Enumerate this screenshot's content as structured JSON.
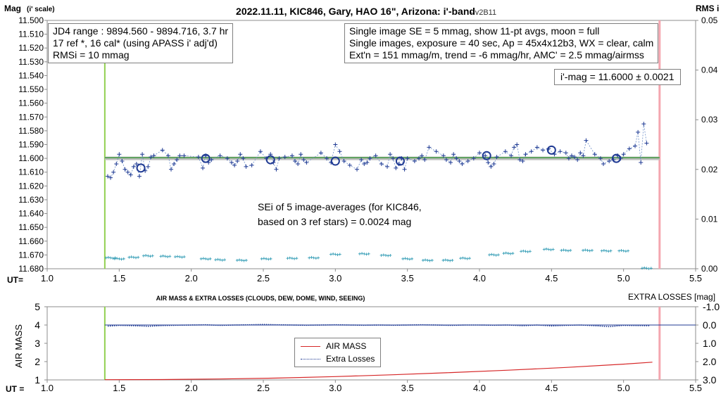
{
  "chart_data": [
    {
      "type": "scatter",
      "title": "2022.11.11, KIC846, Gary, HAO 16\", Arizona: i'-band",
      "version": "- v2B11",
      "ylabel_main": "Mag",
      "ylabel_sub": "(i' scale)",
      "y2label": "RMS i",
      "xlabel": "UT=",
      "xlim": [
        1.0,
        5.5
      ],
      "ylim": [
        11.68,
        11.5
      ],
      "y2lim": [
        0.0,
        0.05
      ],
      "xticks": [
        "1.0",
        "1.5",
        "2.0",
        "2.5",
        "3.0",
        "3.5",
        "4.0",
        "4.5",
        "5.0",
        "5.5"
      ],
      "yticks": [
        "11.500",
        "11.510",
        "11.520",
        "11.530",
        "11.540",
        "11.550",
        "11.560",
        "11.570",
        "11.580",
        "11.590",
        "11.600",
        "11.610",
        "11.620",
        "11.630",
        "11.640",
        "11.650",
        "11.660",
        "11.670",
        "11.680"
      ],
      "y2ticks": [
        "0.05",
        "0.04",
        "0.03",
        "0.02",
        "0.01",
        "0.00"
      ],
      "vertical_lines": {
        "start_ut": 1.4,
        "end_ut": 5.25
      },
      "reference_mag": 11.6,
      "annotations": {
        "left_box": [
          "JD4 range : 9894.560 - 9894.716, 3.7  hr",
          "17 ref *, 16 cal* (using APASS i' adj'd)",
          "RMSi = 10 mmag"
        ],
        "right_box": [
          "Single image SE = 5 mmag, show 11-pt avgs, moon = full",
          "Single images, exposure = 40 sec, Ap = 45x4x12b3, WX = clear, calm",
          "Ext'n = 151 mmag/m, trend = -6 mmag/hr, AMC' = 2.5 mmag/airmss"
        ],
        "mag_box": "i'-mag = 11.6000 ± 0.0021",
        "sei_box": [
          "SEi of 5 image-averages (for KIC846,",
          "based on 3 ref stars) = 0.0024 mag"
        ]
      },
      "series": [
        {
          "kind": "single-images",
          "color": "#1f3a93",
          "x": [
            1.42,
            1.44,
            1.46,
            1.48,
            1.5,
            1.52,
            1.54,
            1.56,
            1.58,
            1.6,
            1.62,
            1.64,
            1.66,
            1.68,
            1.7,
            1.72,
            1.74,
            1.8,
            1.84,
            1.86,
            1.88,
            1.9,
            1.92,
            1.95,
            2.05,
            2.08,
            2.1,
            2.12,
            2.14,
            2.2,
            2.25,
            2.28,
            2.3,
            2.32,
            2.34,
            2.36,
            2.38,
            2.42,
            2.48,
            2.52,
            2.55,
            2.57,
            2.59,
            2.61,
            2.65,
            2.7,
            2.72,
            2.74,
            2.76,
            2.78,
            2.8,
            2.9,
            2.94,
            2.97,
            3.0,
            3.03,
            3.06,
            3.1,
            3.15,
            3.18,
            3.2,
            3.22,
            3.24,
            3.28,
            3.32,
            3.36,
            3.38,
            3.4,
            3.42,
            3.44,
            3.46,
            3.48,
            3.5,
            3.55,
            3.58,
            3.6,
            3.62,
            3.65,
            3.7,
            3.75,
            3.77,
            3.8,
            3.82,
            3.84,
            3.86,
            3.88,
            3.92,
            3.96,
            4.0,
            4.04,
            4.06,
            4.08,
            4.1,
            4.12,
            4.18,
            4.22,
            4.24,
            4.26,
            4.28,
            4.3,
            4.32,
            4.36,
            4.4,
            4.44,
            4.48,
            4.52,
            4.56,
            4.6,
            4.62,
            4.64,
            4.66,
            4.68,
            4.7,
            4.72,
            4.74,
            4.8,
            4.84,
            4.86,
            4.9,
            4.93,
            4.96,
            4.98,
            5.0,
            5.04,
            5.08,
            5.1,
            5.12,
            5.14,
            5.16
          ],
          "y": [
            11.613,
            11.614,
            11.61,
            11.604,
            11.597,
            11.602,
            11.608,
            11.61,
            11.612,
            11.606,
            11.604,
            11.613,
            11.597,
            11.609,
            11.606,
            11.599,
            11.598,
            11.594,
            11.598,
            11.608,
            11.604,
            11.601,
            11.598,
            11.598,
            11.599,
            11.607,
            11.598,
            11.603,
            11.601,
            11.598,
            11.6,
            11.603,
            11.605,
            11.602,
            11.597,
            11.6,
            11.606,
            11.605,
            11.595,
            11.6,
            11.597,
            11.603,
            11.608,
            11.6,
            11.599,
            11.598,
            11.602,
            11.604,
            11.597,
            11.601,
            11.603,
            11.596,
            11.6,
            11.603,
            11.59,
            11.595,
            11.602,
            11.605,
            11.608,
            11.601,
            11.604,
            11.603,
            11.6,
            11.598,
            11.604,
            11.606,
            11.597,
            11.6,
            11.607,
            11.604,
            11.6,
            11.608,
            11.6,
            11.602,
            11.6,
            11.598,
            11.601,
            11.592,
            11.595,
            11.598,
            11.601,
            11.603,
            11.597,
            11.6,
            11.602,
            11.604,
            11.602,
            11.6,
            11.596,
            11.598,
            11.603,
            11.606,
            11.604,
            11.599,
            11.595,
            11.598,
            11.592,
            11.59,
            11.601,
            11.602,
            11.597,
            11.595,
            11.592,
            11.594,
            11.593,
            11.597,
            11.595,
            11.596,
            11.6,
            11.598,
            11.599,
            11.601,
            11.596,
            11.598,
            11.587,
            11.597,
            11.6,
            11.604,
            11.602,
            11.601,
            11.598,
            11.6,
            11.597,
            11.593,
            11.591,
            11.581,
            11.603,
            11.575,
            11.589
          ]
        },
        {
          "kind": "11-pt averages",
          "color": "#1f3a93",
          "x": [
            1.65,
            2.1,
            2.55,
            3.0,
            3.45,
            4.05,
            4.5,
            4.95
          ],
          "y": [
            11.607,
            11.6,
            11.601,
            11.602,
            11.602,
            11.598,
            11.594,
            11.6
          ]
        },
        {
          "kind": "RMS i (right axis)",
          "color": "#3aa0b8",
          "x": [
            1.44,
            1.5,
            1.6,
            1.7,
            1.82,
            1.92,
            2.1,
            2.2,
            2.35,
            2.52,
            2.7,
            2.85,
            3.0,
            3.2,
            3.35,
            3.5,
            3.64,
            3.78,
            3.9,
            4.1,
            4.2,
            4.32,
            4.48,
            4.6,
            4.75,
            4.88,
            5.0,
            5.16
          ],
          "y": [
            0.0022,
            0.002,
            0.0023,
            0.0026,
            0.0025,
            0.0024,
            0.002,
            0.0018,
            0.0017,
            0.002,
            0.0021,
            0.0022,
            0.0029,
            0.003,
            0.0027,
            0.002,
            0.0017,
            0.0017,
            0.0021,
            0.0028,
            0.0031,
            0.0035,
            0.0039,
            0.0037,
            0.0037,
            0.0036,
            0.0036,
            0.0001
          ]
        }
      ]
    },
    {
      "type": "line",
      "title": "AIR MASS & EXTRA LOSSES (CLOUDS, DEW, DOME, WIND, SEEING)",
      "ylabel": "AIR MASS",
      "y2label": "EXTRA LOSSES [mag]",
      "xlabel": "UT =",
      "xlim": [
        1.0,
        5.5
      ],
      "ylim": [
        1,
        5
      ],
      "y2lim": [
        3.0,
        -1.0
      ],
      "xticks": [
        "1.0",
        "1.5",
        "2.0",
        "2.5",
        "3.0",
        "3.5",
        "4.0",
        "4.5",
        "5.0",
        "5.5"
      ],
      "yticks": [
        "5",
        "4",
        "3",
        "2",
        "1"
      ],
      "y2ticks": [
        "-1.0",
        "0.0",
        "1.0",
        "2.0",
        "3.0"
      ],
      "legend": [
        "AIR MASS",
        "Extra Losses"
      ],
      "series": [
        {
          "name": "AIR MASS",
          "color": "#d62728",
          "x": [
            1.4,
            1.8,
            2.2,
            2.6,
            3.0,
            3.4,
            3.8,
            4.2,
            4.6,
            5.0,
            5.2
          ],
          "y": [
            1.01,
            1.02,
            1.05,
            1.1,
            1.18,
            1.28,
            1.4,
            1.53,
            1.68,
            1.86,
            1.97
          ]
        },
        {
          "name": "Extra Losses",
          "color": "#1f3a93",
          "x": [
            1.42,
            1.5,
            1.6,
            1.7,
            1.8,
            1.9,
            2.0,
            2.1,
            2.2,
            2.3,
            2.4,
            2.5,
            2.6,
            2.7,
            2.8,
            2.9,
            3.0,
            3.1,
            3.2,
            3.3,
            3.4,
            3.5,
            3.6,
            3.7,
            3.8,
            3.9,
            4.0,
            4.1,
            4.2,
            4.3,
            4.4,
            4.5,
            4.6,
            4.7,
            4.8,
            4.9,
            5.0,
            5.1,
            5.18
          ],
          "y": [
            0.06,
            0.02,
            0.04,
            0.07,
            0.03,
            0.01,
            0.0,
            -0.01,
            0.02,
            0.0,
            -0.01,
            -0.03,
            -0.01,
            0.0,
            0.01,
            0.0,
            -0.01,
            0.0,
            0.01,
            0.0,
            0.01,
            0.0,
            -0.01,
            0.0,
            0.02,
            0.0,
            0.0,
            0.01,
            0.0,
            0.04,
            0.0,
            0.05,
            0.02,
            0.0,
            0.04,
            0.09,
            0.02,
            0.03,
            0.04
          ]
        }
      ]
    }
  ]
}
